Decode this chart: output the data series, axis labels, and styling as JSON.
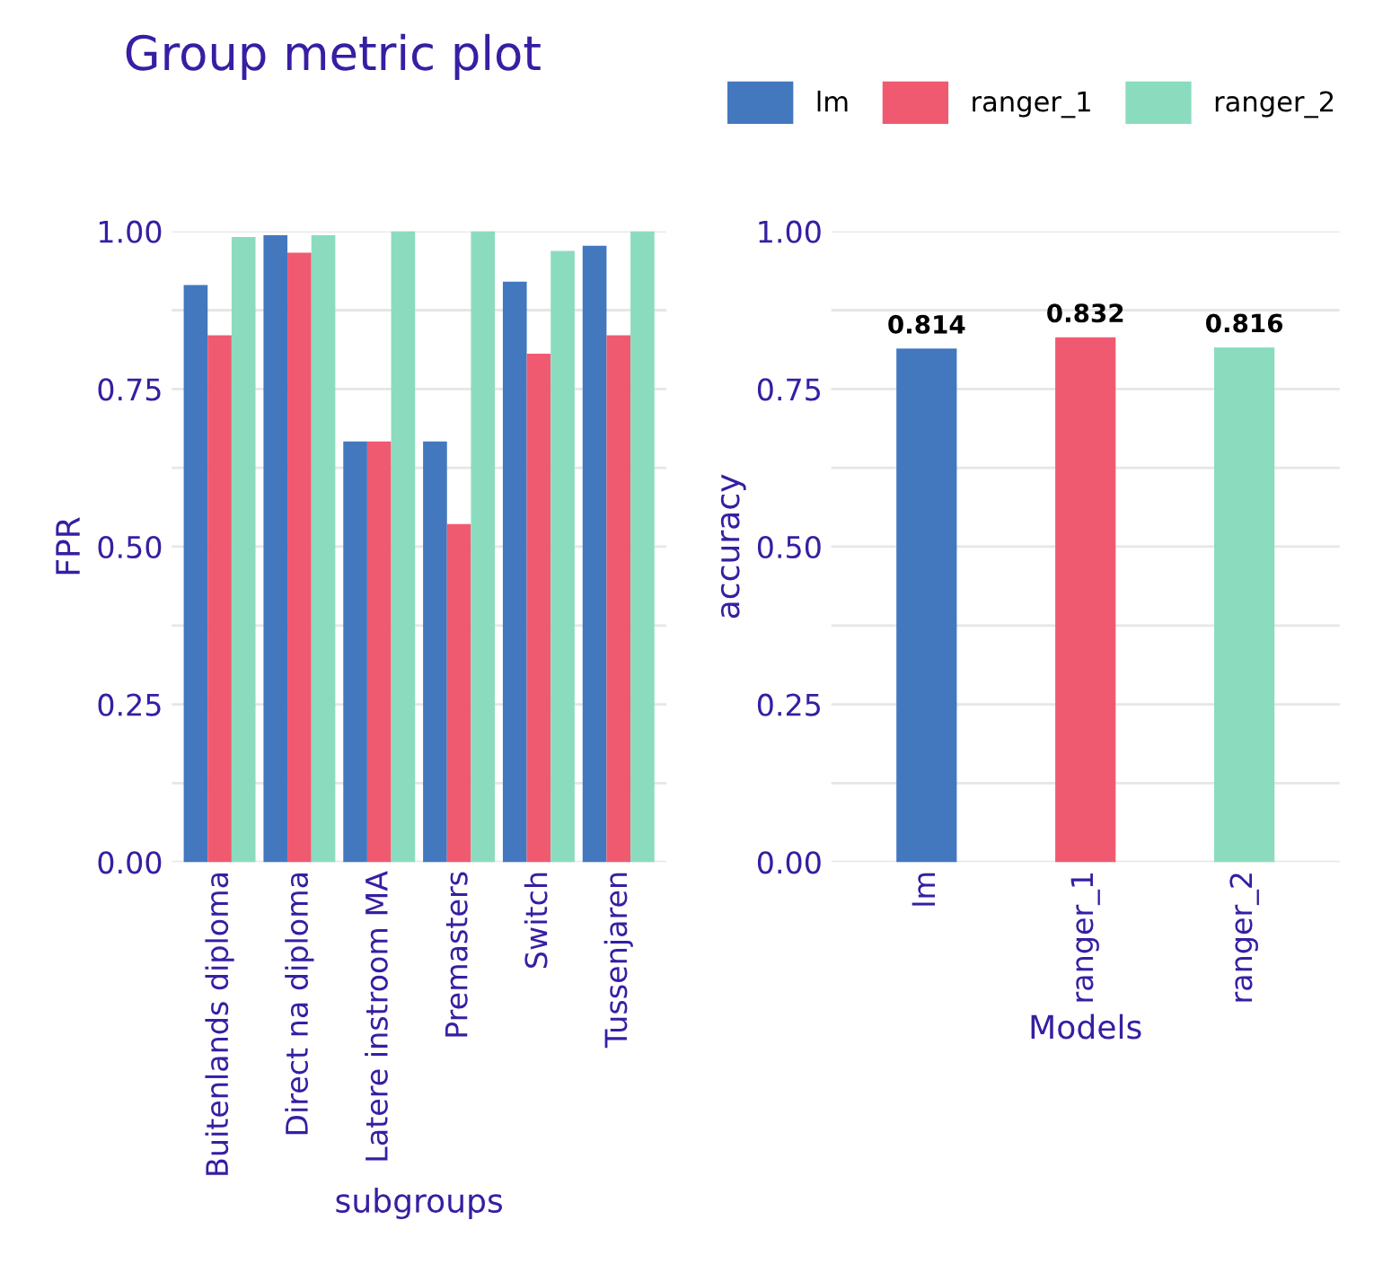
{
  "chart_data": [
    {
      "type": "bar",
      "title": "Group metric plot",
      "xlabel": "subgroups",
      "ylabel": "FPR",
      "categories": [
        "Buitenlands diploma",
        "Direct na diploma",
        "Latere instroom MA",
        "Premasters",
        "Switch",
        "Tussenjaren"
      ],
      "series": [
        {
          "name": "lm",
          "color": "#4378bf",
          "values": [
            0.915,
            0.994,
            0.667,
            0.667,
            0.92,
            0.977
          ]
        },
        {
          "name": "ranger_1",
          "color": "#f05a71",
          "values": [
            0.835,
            0.966,
            0.667,
            0.536,
            0.806,
            0.835
          ]
        },
        {
          "name": "ranger_2",
          "color": "#8bdcbe",
          "values": [
            0.991,
            0.994,
            1.0,
            1.0,
            0.969,
            1.0
          ]
        }
      ],
      "ylim": [
        0,
        1
      ],
      "yticks": [
        {
          "value": 0,
          "label": "0.00"
        },
        {
          "value": 0.125,
          "label": null
        },
        {
          "value": 0.25,
          "label": "0.25"
        },
        {
          "value": 0.375,
          "label": null
        },
        {
          "value": 0.5,
          "label": "0.50"
        },
        {
          "value": 0.625,
          "label": null
        },
        {
          "value": 0.75,
          "label": "0.75"
        },
        {
          "value": 0.875,
          "label": null
        },
        {
          "value": 1,
          "label": "1.00"
        }
      ],
      "grid": "y",
      "legend": "top right"
    },
    {
      "type": "bar",
      "xlabel": "Models",
      "ylabel": "accuracy",
      "categories": [
        "lm",
        "ranger_1",
        "ranger_2"
      ],
      "values": [
        0.814,
        0.832,
        0.816
      ],
      "colors": [
        "#4378bf",
        "#f05a71",
        "#8bdcbe"
      ],
      "ylim": [
        0,
        1
      ],
      "yticks": [
        {
          "value": 0,
          "label": "0.00"
        },
        {
          "value": 0.125,
          "label": null
        },
        {
          "value": 0.25,
          "label": "0.25"
        },
        {
          "value": 0.375,
          "label": null
        },
        {
          "value": 0.5,
          "label": "0.50"
        },
        {
          "value": 0.625,
          "label": null
        },
        {
          "value": 0.75,
          "label": "0.75"
        },
        {
          "value": 0.875,
          "label": null
        },
        {
          "value": 1,
          "label": "1.00"
        }
      ],
      "grid": "y",
      "data_labels": true
    }
  ]
}
